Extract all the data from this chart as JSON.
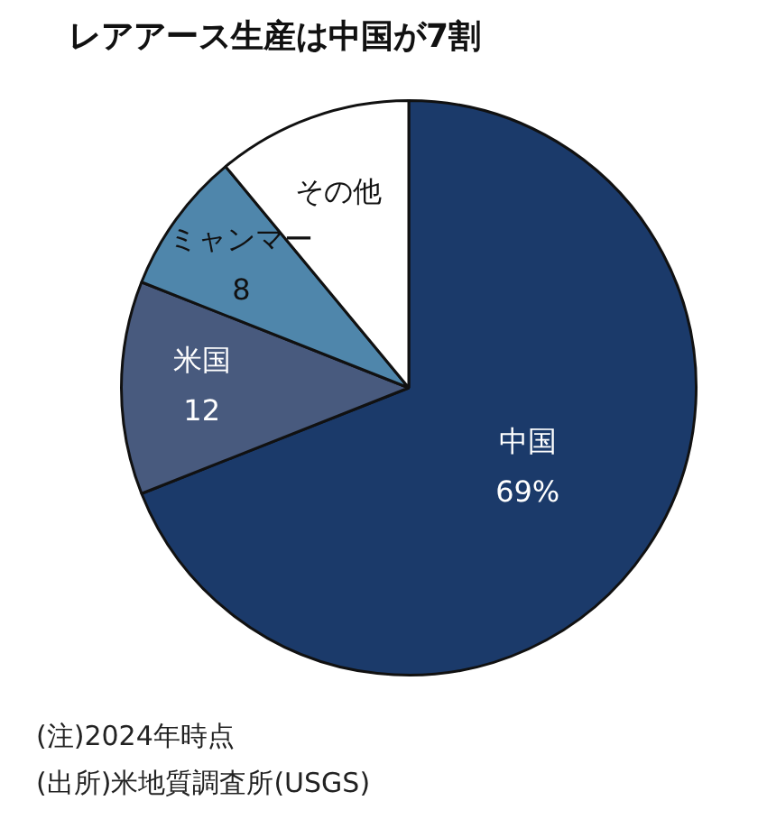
{
  "chart_data": {
    "type": "pie",
    "title": "レアアース生産は中国が7割",
    "categories": [
      "中国",
      "米国",
      "ミャンマー",
      "その他"
    ],
    "values": [
      69,
      12,
      8,
      11
    ],
    "colors": [
      "#1b3a6a",
      "#485a7e",
      "#4f86ab",
      "#ffffff"
    ],
    "value_labels": [
      "69%",
      "12",
      "8",
      null
    ],
    "legend": false,
    "annotations": [
      "(注)2024年時点",
      "(出所)米地質調査所(USGS)"
    ]
  }
}
